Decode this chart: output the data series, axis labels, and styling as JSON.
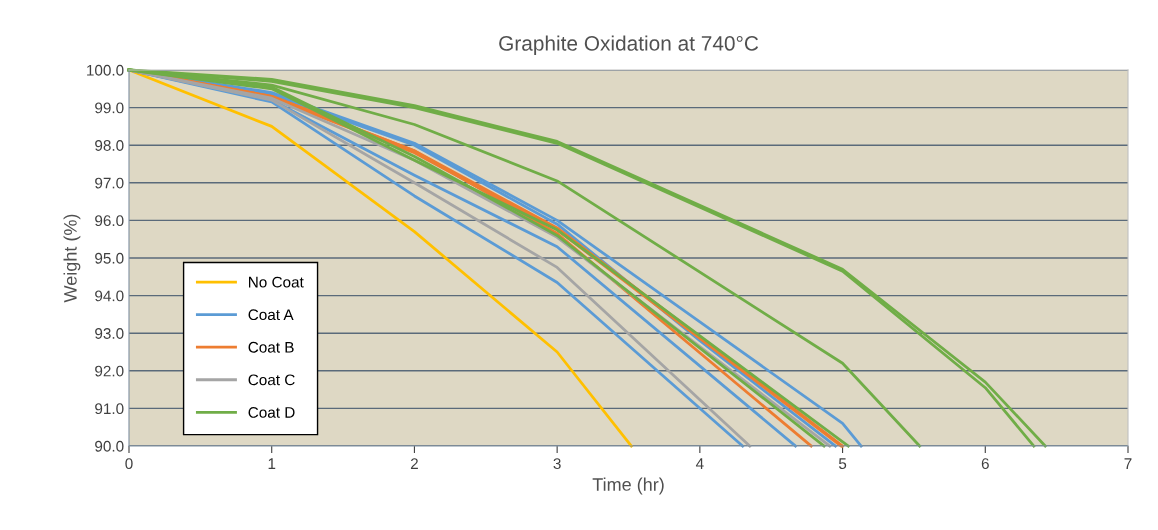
{
  "chart_data": {
    "type": "line",
    "title": "Graphite Oxidation at 740°C",
    "xlabel": "Time (hr)",
    "ylabel": "Weight (%)",
    "xlim": [
      0,
      7
    ],
    "xticks": [
      0,
      1,
      2,
      3,
      4,
      5,
      6,
      7
    ],
    "ylim": [
      90,
      100
    ],
    "yticks": [
      {
        "value": 90,
        "label": "90.0"
      },
      {
        "value": 91,
        "label": "91.0"
      },
      {
        "value": 92,
        "label": "92.0"
      },
      {
        "value": 93,
        "label": "93.0"
      },
      {
        "value": 94,
        "label": "94.0"
      },
      {
        "value": 95,
        "label": "95.0"
      },
      {
        "value": 96,
        "label": "96.0"
      },
      {
        "value": 97,
        "label": "97.0"
      },
      {
        "value": 98,
        "label": "98.0"
      },
      {
        "value": 99,
        "label": "99.0"
      },
      {
        "value": 100,
        "label": "100.0"
      }
    ],
    "grid": "y",
    "legend": "bottom left",
    "marker": "none",
    "line_style": "solid",
    "series": [
      {
        "name": "No Coat",
        "color": "#ffc000",
        "x": [
          0,
          1,
          2,
          3,
          3.52
        ],
        "values": [
          100,
          98.5,
          95.7,
          92.5,
          90
        ]
      },
      {
        "name": "Coat A",
        "color": "#5b9bd5",
        "x": [
          0,
          1,
          2,
          3,
          4,
          5,
          5.13
        ],
        "values": [
          100,
          99.4,
          98.05,
          96.0,
          93.3,
          90.6,
          90
        ]
      },
      {
        "color": "#5b9bd5",
        "x": [
          0,
          1,
          2,
          3,
          4,
          4.95
        ],
        "values": [
          100,
          99.35,
          98.0,
          95.9,
          92.8,
          90
        ]
      },
      {
        "color": "#5b9bd5",
        "x": [
          0,
          1,
          2,
          3,
          4.67
        ],
        "values": [
          100,
          99.2,
          97.2,
          95.3,
          90
        ]
      },
      {
        "color": "#5b9bd5",
        "x": [
          0,
          1,
          2,
          3,
          4.3
        ],
        "values": [
          100,
          99.15,
          96.65,
          94.35,
          90
        ]
      },
      {
        "name": "Coat B",
        "color": "#ed7d31",
        "x": [
          0,
          1,
          2,
          3,
          5.0
        ],
        "values": [
          100,
          99.3,
          97.85,
          95.8,
          90
        ]
      },
      {
        "color": "#ed7d31",
        "x": [
          0,
          1,
          2,
          3,
          4.99
        ],
        "values": [
          100,
          99.25,
          97.8,
          95.75,
          90
        ]
      },
      {
        "color": "#ed7d31",
        "x": [
          0,
          1,
          2,
          3,
          4.78
        ],
        "values": [
          100,
          99.3,
          97.85,
          95.65,
          90
        ]
      },
      {
        "name": "Coat C",
        "color": "#a5a5a5",
        "x": [
          0,
          1,
          2,
          3,
          4.35
        ],
        "values": [
          100,
          99.2,
          97.0,
          94.75,
          90
        ]
      },
      {
        "color": "#a5a5a5",
        "x": [
          0,
          1,
          2,
          3,
          4.91
        ],
        "values": [
          100,
          99.25,
          97.6,
          95.55,
          90
        ]
      },
      {
        "name": "Coat D",
        "color": "#70ad47",
        "x": [
          0,
          1,
          2,
          3,
          5,
          6,
          6.42
        ],
        "values": [
          100,
          99.75,
          99.05,
          98.1,
          94.7,
          91.7,
          90
        ]
      },
      {
        "color": "#70ad47",
        "x": [
          0,
          1,
          2,
          3,
          5,
          6,
          6.34
        ],
        "values": [
          100,
          99.7,
          99.0,
          98.05,
          94.65,
          91.55,
          90
        ]
      },
      {
        "color": "#70ad47",
        "x": [
          0,
          1,
          2,
          3,
          5,
          5.54
        ],
        "values": [
          100,
          99.6,
          98.55,
          97.05,
          92.2,
          90
        ]
      },
      {
        "color": "#70ad47",
        "x": [
          0,
          1,
          2,
          3,
          5.04
        ],
        "values": [
          100,
          99.5,
          97.6,
          95.75,
          90
        ]
      },
      {
        "color": "#70ad47",
        "x": [
          0,
          1,
          2,
          3,
          4.87
        ],
        "values": [
          100,
          99.55,
          97.7,
          95.6,
          90
        ]
      }
    ]
  }
}
